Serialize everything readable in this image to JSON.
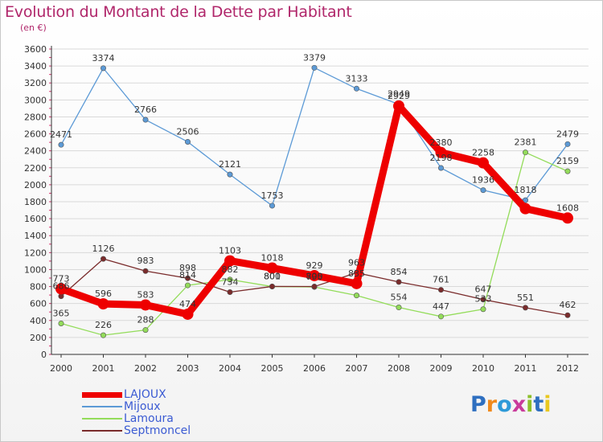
{
  "header": {
    "title": "Evolution du Montant de la Dette par Habitant",
    "subtitle": "(en €)"
  },
  "logo": {
    "letters": [
      "P",
      "r",
      "o",
      "x",
      "i",
      "t",
      "i"
    ]
  },
  "colors": {
    "title": "#b0266a",
    "legend_text": "#3b5bd3",
    "grid": "#d9d9d9",
    "axis": "#333333",
    "logo": [
      "#2e6fc0",
      "#f08a1c",
      "#2e9ad8",
      "#c93b9b",
      "#8cbf2a",
      "#2e6fc0",
      "#e9c81f"
    ]
  },
  "chart_data": {
    "type": "line",
    "title": "Evolution du Montant de la Dette par Habitant",
    "subtitle": "(en €)",
    "xlabel": "",
    "ylabel": "",
    "x": [
      "2000",
      "2001",
      "2002",
      "2003",
      "2004",
      "2005",
      "2006",
      "2007",
      "2008",
      "2009",
      "2010",
      "2011",
      "2012"
    ],
    "ylim": [
      0,
      3600
    ],
    "yticks": [
      0,
      200,
      400,
      600,
      800,
      1000,
      1200,
      1400,
      1600,
      1800,
      2000,
      2200,
      2400,
      2600,
      2800,
      3000,
      3200,
      3400,
      3600
    ],
    "grid": true,
    "legend_position": "bottom-left",
    "series": [
      {
        "name": "LAJOUX",
        "color": "#ee0000",
        "values": [
          773,
          596,
          583,
          474,
          1103,
          1018,
          929,
          835,
          2929,
          2380,
          2258,
          1718,
          1608
        ],
        "labels": [
          "773",
          "596",
          "583",
          "474",
          "1103",
          "1018",
          "929",
          "835",
          "2929",
          "2380",
          "2258",
          "",
          "1608"
        ]
      },
      {
        "name": "Mijoux",
        "color": "#5c9ad6",
        "values": [
          2471,
          3374,
          2766,
          2506,
          2121,
          1753,
          3379,
          3133,
          2949,
          2198,
          1936,
          1818,
          2479
        ],
        "labels": [
          "2471",
          "3374",
          "2766",
          "2506",
          "2121",
          "1753",
          "3379",
          "3133",
          "2949",
          "2198",
          "1936",
          "1818",
          "2479"
        ]
      },
      {
        "name": "Lamoura",
        "color": "#93dc5a",
        "values": [
          365,
          226,
          288,
          814,
          882,
          800,
          795,
          695,
          554,
          447,
          533,
          2381,
          2159
        ],
        "labels": [
          "365",
          "226",
          "288",
          "814",
          "882",
          "800",
          "795",
          "",
          "554",
          "447",
          "533",
          "2381",
          "2159"
        ]
      },
      {
        "name": "Septmoncel",
        "color": "#7a2b2b",
        "values": [
          686,
          1126,
          983,
          898,
          734,
          801,
          800,
          963,
          854,
          761,
          647,
          551,
          462
        ],
        "labels": [
          "686",
          "1126",
          "983",
          "898",
          "734",
          "801",
          "800",
          "963",
          "854",
          "761",
          "647",
          "551",
          "462"
        ]
      }
    ]
  }
}
